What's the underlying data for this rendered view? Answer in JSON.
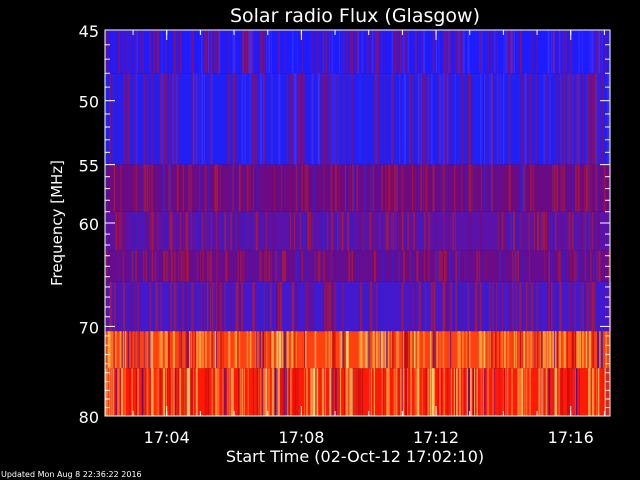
{
  "chart_data": {
    "type": "heatmap",
    "title": "Solar radio Flux (Glasgow)",
    "ylabel": "Frequency [MHz]",
    "xlabel": "Start Time (02-Oct-12 17:02:10)",
    "x_ticks": [
      "17:04",
      "17:08",
      "17:12",
      "17:16"
    ],
    "y_ticks": [
      45,
      50,
      55,
      60,
      70,
      80
    ],
    "y_unit": "MHz",
    "ylim": [
      45,
      80
    ],
    "y_scale": "log",
    "bands": [
      {
        "from_mhz": 45.0,
        "to_mhz": 48.0,
        "color": "#1c1cff"
      },
      {
        "from_mhz": 48.0,
        "to_mhz": 55.0,
        "color": "#2020f4"
      },
      {
        "from_mhz": 55.0,
        "to_mhz": 59.0,
        "color": "#6a0a84"
      },
      {
        "from_mhz": 59.0,
        "to_mhz": 62.5,
        "color": "#5a12a8"
      },
      {
        "from_mhz": 62.5,
        "to_mhz": 65.5,
        "color": "#660c90"
      },
      {
        "from_mhz": 65.5,
        "to_mhz": 70.5,
        "color": "#4418cc"
      },
      {
        "from_mhz": 70.5,
        "to_mhz": 74.5,
        "color": "#ff4010"
      },
      {
        "from_mhz": 74.5,
        "to_mhz": 80.0,
        "color": "#ff1a08"
      }
    ]
  },
  "footer": {
    "updated": "Updated Mon Aug  8 22:36:22 2016"
  }
}
